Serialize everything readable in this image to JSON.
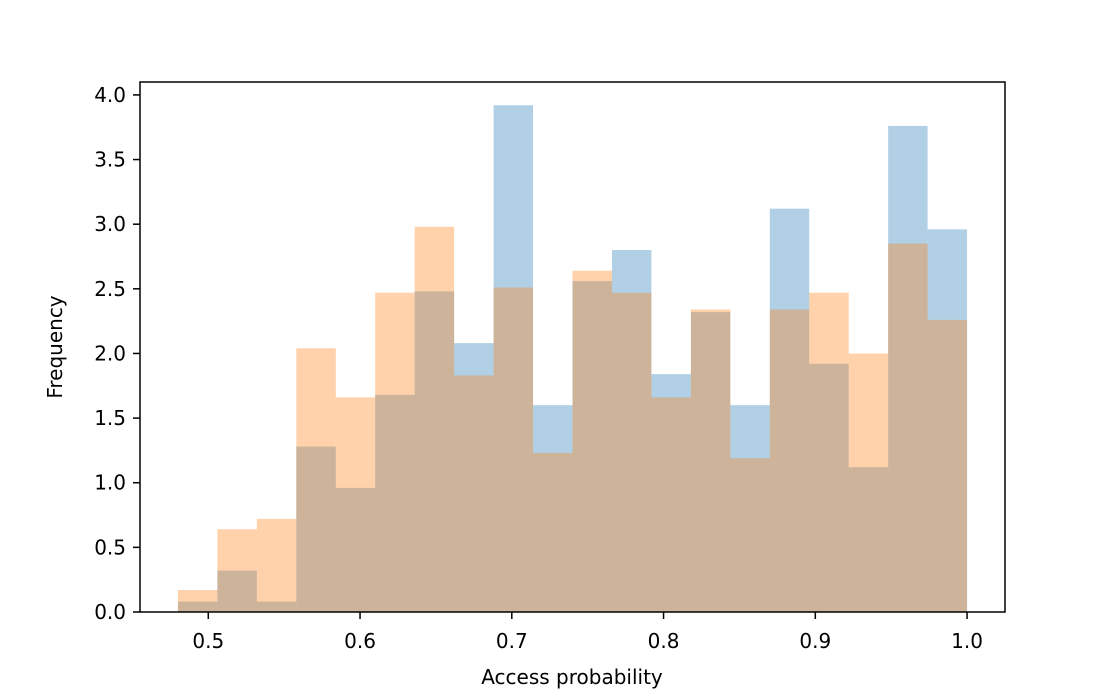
{
  "chart_data": {
    "type": "bar",
    "xlabel": "Access probability",
    "ylabel": "Frequency",
    "xlim": [
      0.455,
      1.025
    ],
    "ylim": [
      0,
      4.1
    ],
    "xticks": [
      "0.5",
      "0.6",
      "0.7",
      "0.8",
      "0.9",
      "1.0"
    ],
    "yticks": [
      "0.0",
      "0.5",
      "1.0",
      "1.5",
      "2.0",
      "2.5",
      "3.0",
      "3.5",
      "4.0"
    ],
    "bin_edges": [
      0.48,
      0.506,
      0.532,
      0.558,
      0.584,
      0.61,
      0.636,
      0.662,
      0.688,
      0.714,
      0.74,
      0.766,
      0.792,
      0.818,
      0.844,
      0.87,
      0.896,
      0.922,
      0.948,
      0.974,
      1.0
    ],
    "series": [
      {
        "color": "#1f77b4",
        "opacity": 0.35,
        "values": [
          0.08,
          0.32,
          0.08,
          1.28,
          0.96,
          1.68,
          2.48,
          2.08,
          3.92,
          1.6,
          2.56,
          2.8,
          1.84,
          2.32,
          1.6,
          3.12,
          1.92,
          1.12,
          3.76,
          2.96
        ]
      },
      {
        "color": "#ff7f0e",
        "opacity": 0.35,
        "values": [
          0.17,
          0.64,
          0.72,
          2.04,
          1.66,
          2.47,
          2.98,
          1.83,
          2.51,
          1.23,
          2.64,
          2.47,
          1.66,
          2.34,
          1.19,
          2.34,
          2.47,
          2.0,
          2.85,
          2.26
        ]
      }
    ],
    "grid": false,
    "legend": false
  }
}
